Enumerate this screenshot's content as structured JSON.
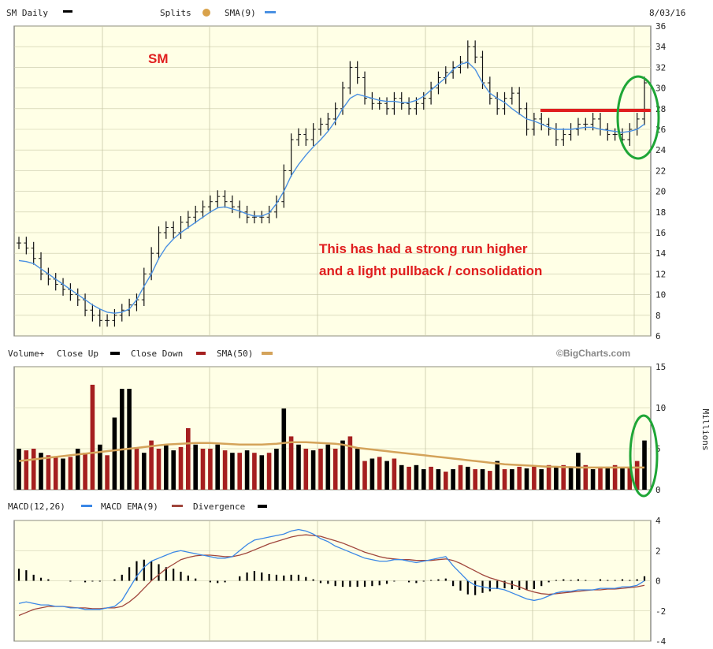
{
  "price_header": {
    "title": "SM Daily",
    "splits_label": "Splits",
    "sma_label": "SMA(9)",
    "date": "8/03/16"
  },
  "volume_header": {
    "label": "Volume+",
    "close_up_label": "Close Up",
    "close_down_label": "Close Down",
    "sma_label": "SMA(50)",
    "watermark": "©BigCharts.com",
    "unit_label": "Millions"
  },
  "macd_header": {
    "label": "MACD(12,26)",
    "ema_label": "MACD EMA(9)",
    "divergence_label": "Divergence"
  },
  "annotations": {
    "symbol": "SM",
    "note_line1": "This has had a strong run higher",
    "note_line2": "and a light pullback / consolidation"
  },
  "colors": {
    "plot_bg": "#ffffe6",
    "sma9": "#4a90e2",
    "sma50": "#d4a35a",
    "close_up": "#000000",
    "close_down": "#a51f1f",
    "macd": "#3a87e6",
    "macd_ema": "#a0463c",
    "annotation": "#e01e1e",
    "circle": "#1fa637"
  },
  "chart_data": [
    {
      "type": "line",
      "panel": "price",
      "title": "SM Daily",
      "series": [
        {
          "name": "SM",
          "values": [
            15.0,
            14.5,
            13.5,
            12.0,
            11.5,
            11.0,
            10.5,
            10.0,
            9.5,
            8.5,
            8.0,
            7.5,
            7.5,
            8.0,
            8.5,
            9.0,
            9.5,
            12.0,
            14.0,
            16.0,
            16.5,
            16.0,
            17.0,
            17.5,
            18.0,
            18.5,
            19.0,
            19.5,
            19.0,
            18.5,
            18.0,
            17.5,
            17.5,
            17.5,
            18.0,
            19.0,
            22.0,
            25.0,
            25.5,
            25.0,
            26.0,
            26.5,
            27.0,
            28.0,
            30.0,
            32.0,
            31.0,
            29.0,
            28.5,
            28.5,
            28.0,
            29.0,
            28.5,
            28.0,
            28.5,
            29.0,
            30.0,
            31.0,
            31.5,
            32.0,
            32.5,
            34.0,
            33.0,
            30.5,
            29.0,
            28.0,
            29.0,
            29.5,
            28.0,
            26.0,
            27.0,
            26.5,
            26.0,
            25.0,
            25.5,
            26.0,
            26.5,
            26.5,
            27.0,
            26.0,
            25.5,
            25.5,
            25.0,
            26.0,
            27.0,
            30.5
          ]
        },
        {
          "name": "SMA(9)",
          "values": [
            13.3,
            13.2,
            13.0,
            12.5,
            12.0,
            11.5,
            11.0,
            10.5,
            10.0,
            9.5,
            9.0,
            8.6,
            8.3,
            8.2,
            8.3,
            8.6,
            9.5,
            10.8,
            12.0,
            13.5,
            14.6,
            15.4,
            16.0,
            16.5,
            17.0,
            17.5,
            18.0,
            18.4,
            18.5,
            18.3,
            18.1,
            17.8,
            17.6,
            17.6,
            17.9,
            18.8,
            20.0,
            21.5,
            22.6,
            23.5,
            24.3,
            25.0,
            25.8,
            26.8,
            28.0,
            29.0,
            29.4,
            29.2,
            29.0,
            28.8,
            28.7,
            28.7,
            28.6,
            28.6,
            28.8,
            29.2,
            29.8,
            30.4,
            31.0,
            31.8,
            32.3,
            32.5,
            31.8,
            30.5,
            29.5,
            29.0,
            28.6,
            28.0,
            27.5,
            27.0,
            26.8,
            26.5,
            26.2,
            26.0,
            26.0,
            26.0,
            26.1,
            26.2,
            26.2,
            26.0,
            25.9,
            25.8,
            25.7,
            25.8,
            26.0,
            26.5
          ]
        }
      ],
      "ylim": [
        6,
        36
      ],
      "yticks": [
        6,
        8,
        10,
        12,
        14,
        16,
        18,
        20,
        22,
        24,
        26,
        28,
        30,
        32,
        34,
        36
      ],
      "resistance_level": 28,
      "grid": true
    },
    {
      "type": "bar",
      "panel": "volume",
      "series": [
        {
          "name": "Volume+",
          "values": [
            5.0,
            4.8,
            5.0,
            4.5,
            4.2,
            4.0,
            3.8,
            4.0,
            5.0,
            4.5,
            12.8,
            5.5,
            4.2,
            8.8,
            12.3,
            12.3,
            5.0,
            4.5,
            6.0,
            5.0,
            5.5,
            4.8,
            5.2,
            7.5,
            5.5,
            5.0,
            5.0,
            5.5,
            4.8,
            4.5,
            4.5,
            4.8,
            4.5,
            4.2,
            4.5,
            5.0,
            9.9,
            6.5,
            5.5,
            5.0,
            4.8,
            5.0,
            5.5,
            5.0,
            6.0,
            6.5,
            5.0,
            3.5,
            3.8,
            4.0,
            3.5,
            3.8,
            3.0,
            2.8,
            3.0,
            2.5,
            2.8,
            2.5,
            2.2,
            2.5,
            3.0,
            2.8,
            2.5,
            2.5,
            2.3,
            3.5,
            2.5,
            2.5,
            2.8,
            2.6,
            2.8,
            2.5,
            3.0,
            2.8,
            3.0,
            2.8,
            4.5,
            3.0,
            2.5,
            2.8,
            2.8,
            3.0,
            2.7,
            2.8,
            3.5,
            6.0
          ],
          "up": [
            1,
            0,
            0,
            1,
            0,
            0,
            1,
            0,
            1,
            0,
            0,
            1,
            0,
            1,
            1,
            1,
            0,
            1,
            0,
            0,
            1,
            1,
            0,
            0,
            1,
            0,
            0,
            1,
            0,
            1,
            0,
            1,
            0,
            1,
            0,
            1,
            1,
            0,
            1,
            0,
            1,
            0,
            1,
            0,
            1,
            0,
            1,
            0,
            1,
            0,
            1,
            0,
            1,
            0,
            1,
            1,
            0,
            1,
            0,
            1,
            0,
            1,
            0,
            1,
            0,
            1,
            0,
            1,
            0,
            1,
            0,
            1,
            0,
            1,
            0,
            1,
            1,
            0,
            1,
            0,
            1,
            0,
            1,
            0,
            0,
            1
          ]
        },
        {
          "name": "SMA(50)",
          "values": [
            3.5,
            3.6,
            3.7,
            3.8,
            3.9,
            4.0,
            4.1,
            4.2,
            4.3,
            4.4,
            4.5,
            4.6,
            4.7,
            4.8,
            4.9,
            5.0,
            5.1,
            5.2,
            5.3,
            5.4,
            5.5,
            5.55,
            5.6,
            5.65,
            5.7,
            5.7,
            5.7,
            5.65,
            5.6,
            5.55,
            5.5,
            5.5,
            5.5,
            5.5,
            5.55,
            5.6,
            5.7,
            5.8,
            5.8,
            5.8,
            5.75,
            5.7,
            5.65,
            5.6,
            5.5,
            5.3,
            5.1,
            5.0,
            4.9,
            4.8,
            4.7,
            4.6,
            4.5,
            4.4,
            4.3,
            4.2,
            4.1,
            4.0,
            3.9,
            3.8,
            3.7,
            3.6,
            3.5,
            3.4,
            3.3,
            3.2,
            3.1,
            3.05,
            3.0,
            2.95,
            2.9,
            2.85,
            2.8,
            2.8,
            2.75,
            2.75,
            2.7,
            2.7,
            2.7,
            2.7,
            2.7,
            2.7,
            2.7,
            2.7,
            2.7,
            2.7
          ]
        }
      ],
      "ylim": [
        0,
        15
      ],
      "yticks": [
        0,
        5,
        10,
        15
      ],
      "ylabel": "Millions"
    },
    {
      "type": "line",
      "panel": "macd",
      "series": [
        {
          "name": "MACD(12,26)",
          "values": [
            -1.5,
            -1.4,
            -1.5,
            -1.6,
            -1.6,
            -1.7,
            -1.7,
            -1.8,
            -1.8,
            -1.9,
            -1.9,
            -1.9,
            -1.8,
            -1.7,
            -1.3,
            -0.5,
            0.3,
            0.9,
            1.3,
            1.5,
            1.7,
            1.9,
            2.0,
            1.9,
            1.8,
            1.7,
            1.6,
            1.5,
            1.5,
            1.6,
            2.0,
            2.4,
            2.7,
            2.8,
            2.9,
            3.0,
            3.1,
            3.3,
            3.4,
            3.3,
            3.1,
            2.8,
            2.6,
            2.3,
            2.1,
            1.9,
            1.7,
            1.5,
            1.4,
            1.3,
            1.3,
            1.4,
            1.4,
            1.3,
            1.2,
            1.3,
            1.4,
            1.5,
            1.6,
            1.0,
            0.5,
            0.0,
            -0.3,
            -0.4,
            -0.5,
            -0.5,
            -0.6,
            -0.8,
            -1.0,
            -1.2,
            -1.3,
            -1.2,
            -1.0,
            -0.8,
            -0.7,
            -0.7,
            -0.6,
            -0.6,
            -0.6,
            -0.5,
            -0.5,
            -0.5,
            -0.4,
            -0.4,
            -0.3,
            0.0
          ]
        },
        {
          "name": "MACD EMA(9)",
          "values": [
            -2.3,
            -2.1,
            -1.9,
            -1.8,
            -1.7,
            -1.7,
            -1.7,
            -1.75,
            -1.8,
            -1.8,
            -1.85,
            -1.85,
            -1.8,
            -1.8,
            -1.7,
            -1.4,
            -1.0,
            -0.5,
            0.0,
            0.4,
            0.8,
            1.1,
            1.4,
            1.55,
            1.65,
            1.7,
            1.7,
            1.65,
            1.6,
            1.6,
            1.7,
            1.85,
            2.05,
            2.25,
            2.45,
            2.6,
            2.75,
            2.9,
            3.0,
            3.05,
            3.0,
            2.95,
            2.8,
            2.65,
            2.5,
            2.3,
            2.1,
            1.9,
            1.75,
            1.6,
            1.5,
            1.45,
            1.4,
            1.4,
            1.35,
            1.35,
            1.35,
            1.4,
            1.45,
            1.35,
            1.15,
            0.9,
            0.65,
            0.4,
            0.2,
            0.05,
            -0.1,
            -0.25,
            -0.4,
            -0.6,
            -0.75,
            -0.85,
            -0.9,
            -0.85,
            -0.8,
            -0.75,
            -0.7,
            -0.65,
            -0.6,
            -0.6,
            -0.55,
            -0.55,
            -0.5,
            -0.45,
            -0.4,
            -0.3
          ]
        }
      ],
      "ylim": [
        -4,
        4
      ],
      "yticks": [
        -4,
        -2,
        0,
        2,
        4
      ]
    }
  ]
}
